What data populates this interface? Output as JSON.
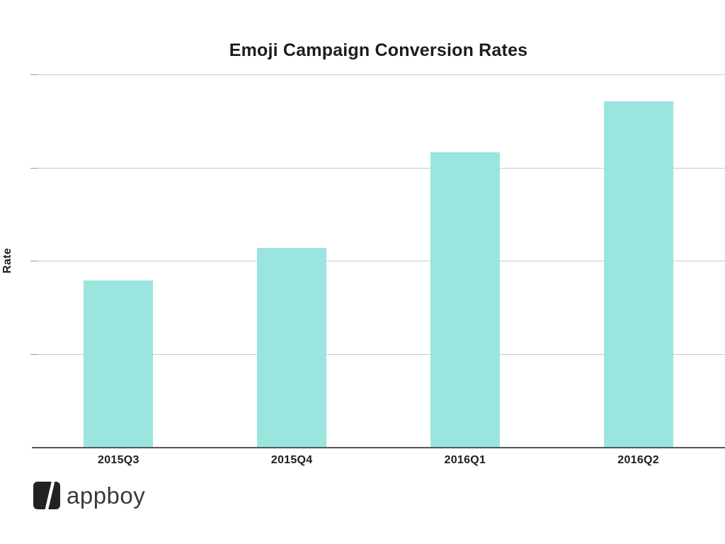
{
  "header": {
    "title": "Emoji Campaign Conversion Rates"
  },
  "chart_data": {
    "type": "bar",
    "title": "Emoji Campaign Conversion Rates",
    "categories": [
      "2015Q3",
      "2015Q4",
      "2016Q1",
      "2016Q2"
    ],
    "values": [
      1.79,
      2.14,
      3.16,
      3.71
    ],
    "xlabel": "",
    "ylabel": "Rate",
    "ylim": [
      0,
      4
    ],
    "y_gridline_step": 1,
    "grid": true,
    "y_tick_labels_shown": false,
    "legend_position": "none",
    "colors": {
      "bar": "#9AE5DE",
      "gridline": "#C9C9C9",
      "tick": "#9A9A9A",
      "axis": "#55565A",
      "text": "#1D1D1D"
    }
  },
  "branding": {
    "logo_icon": "appboy-slash-square-icon",
    "logo_text": "appboy",
    "logo_icon_color": "#222222",
    "logo_text_color": "#3A3A3A"
  }
}
